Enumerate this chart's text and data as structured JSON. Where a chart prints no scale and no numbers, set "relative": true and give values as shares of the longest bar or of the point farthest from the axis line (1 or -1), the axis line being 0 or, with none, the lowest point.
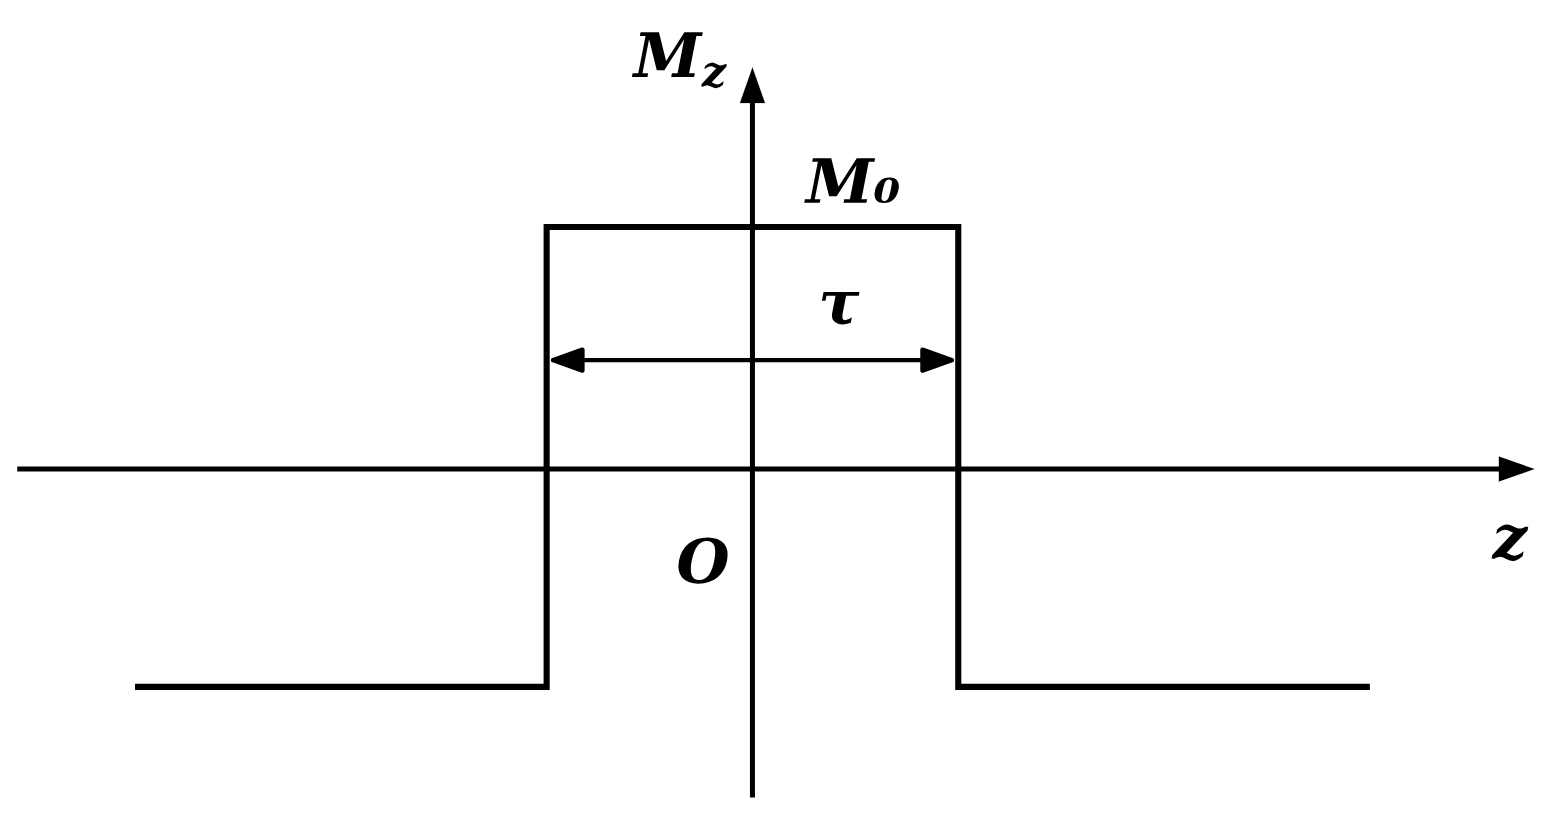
{
  "chart_data": {
    "type": "step",
    "xlabel": "z",
    "ylabel": "M$_{z}$",
    "relative": true,
    "categories": [
      null,
      null,
      null,
      null
    ],
    "series": [
      {
        "color": "#000000",
        "values": [
          -0.9,
          1,
          -0.9,
          -0.9
        ]
      }
    ],
    "annotations": [
      {
        "text": "M₀",
        "y": 1
      },
      "τ",
      "O"
    ]
  }
}
